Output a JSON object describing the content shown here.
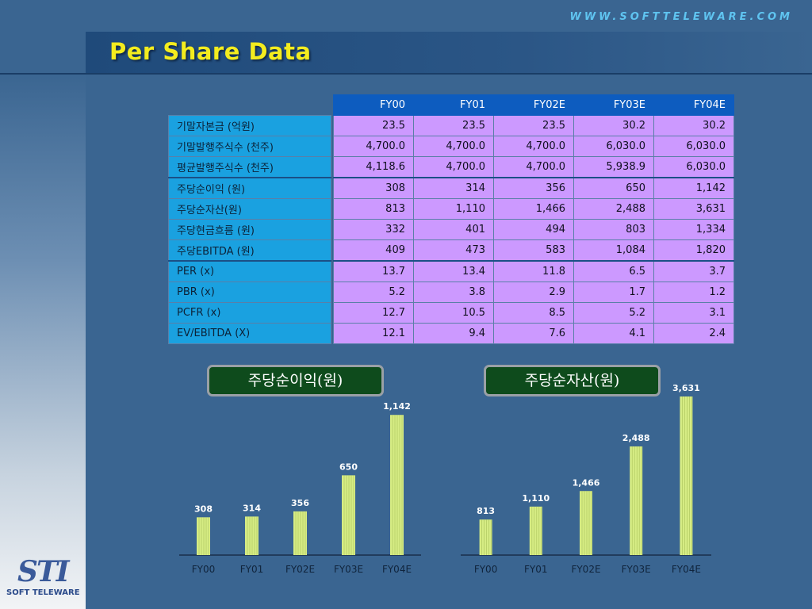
{
  "header": {
    "url": "WWW.SOFTTELEWARE.COM",
    "title": "Per Share Data"
  },
  "table": {
    "columns": [
      "FY00",
      "FY01",
      "FY02E",
      "FY03E",
      "FY04E"
    ],
    "groups": [
      [
        {
          "label": "기말자본금 (억원)",
          "values": [
            "23.5",
            "23.5",
            "23.5",
            "30.2",
            "30.2"
          ]
        },
        {
          "label": "기말발행주식수 (천주)",
          "values": [
            "4,700.0",
            "4,700.0",
            "4,700.0",
            "6,030.0",
            "6,030.0"
          ]
        },
        {
          "label": "평균발행주식수 (천주)",
          "values": [
            "4,118.6",
            "4,700.0",
            "4,700.0",
            "5,938.9",
            "6,030.0"
          ]
        }
      ],
      [
        {
          "label": "주당순이익 (원)",
          "values": [
            "308",
            "314",
            "356",
            "650",
            "1,142"
          ]
        },
        {
          "label": "주당순자산(원)",
          "values": [
            "813",
            "1,110",
            "1,466",
            "2,488",
            "3,631"
          ]
        },
        {
          "label": "주당현금흐름 (원)",
          "values": [
            "332",
            "401",
            "494",
            "803",
            "1,334"
          ]
        },
        {
          "label": "주당EBITDA (원)",
          "values": [
            "409",
            "473",
            "583",
            "1,084",
            "1,820"
          ]
        }
      ],
      [
        {
          "label": "PER (x)",
          "values": [
            "13.7",
            "13.4",
            "11.8",
            "6.5",
            "3.7"
          ]
        },
        {
          "label": "PBR (x)",
          "values": [
            "5.2",
            "3.8",
            "2.9",
            "1.7",
            "1.2"
          ]
        },
        {
          "label": "PCFR (x)",
          "values": [
            "12.7",
            "10.5",
            "8.5",
            "5.2",
            "3.1"
          ]
        },
        {
          "label": "EV/EBITDA (X)",
          "values": [
            "12.1",
            "9.4",
            "7.6",
            "4.1",
            "2.4"
          ]
        }
      ]
    ]
  },
  "chart_data": [
    {
      "type": "bar",
      "title": "주당순이익(원)",
      "categories": [
        "FY00",
        "FY01",
        "FY02E",
        "FY03E",
        "FY04E"
      ],
      "values": [
        308,
        314,
        356,
        650,
        1142
      ],
      "value_labels": [
        "308",
        "314",
        "356",
        "650",
        "1,142"
      ],
      "ylim": [
        0,
        1150
      ],
      "grid": false,
      "bar_color": "#d6ec84"
    },
    {
      "type": "bar",
      "title": "주당순자산(원)",
      "categories": [
        "FY00",
        "FY01",
        "FY02E",
        "FY03E",
        "FY04E"
      ],
      "values": [
        813,
        1110,
        1466,
        2488,
        3631
      ],
      "value_labels": [
        "813",
        "1,110",
        "1,466",
        "2,488",
        "3,631"
      ],
      "ylim": [
        0,
        3631
      ],
      "grid": false,
      "bar_color": "#d6ec84"
    }
  ],
  "logo": {
    "mark": "STI",
    "text": "SOFT TELEWARE"
  }
}
